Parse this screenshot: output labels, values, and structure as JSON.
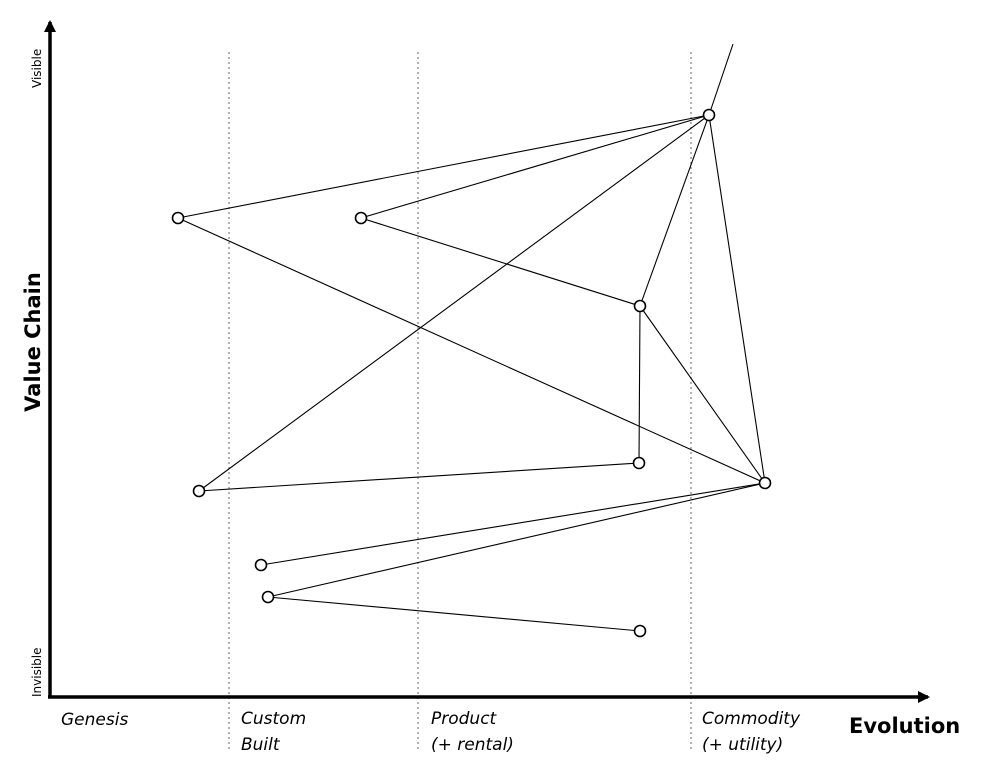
{
  "axes": {
    "y_title": "Value Chain",
    "y_top": "Visible",
    "y_bottom": "Invisible",
    "x_title": "Evolution"
  },
  "stages": [
    {
      "line1": "Genesis",
      "line2": ""
    },
    {
      "line1": "Custom",
      "line2": "Built"
    },
    {
      "line1": "Product",
      "line2": "(+ rental)"
    },
    {
      "line1": "Commodity",
      "line2": "(+ utility)"
    }
  ],
  "colors": {
    "ink": "#000000",
    "divider": "#888888",
    "node_fill": "#ffffff"
  }
}
